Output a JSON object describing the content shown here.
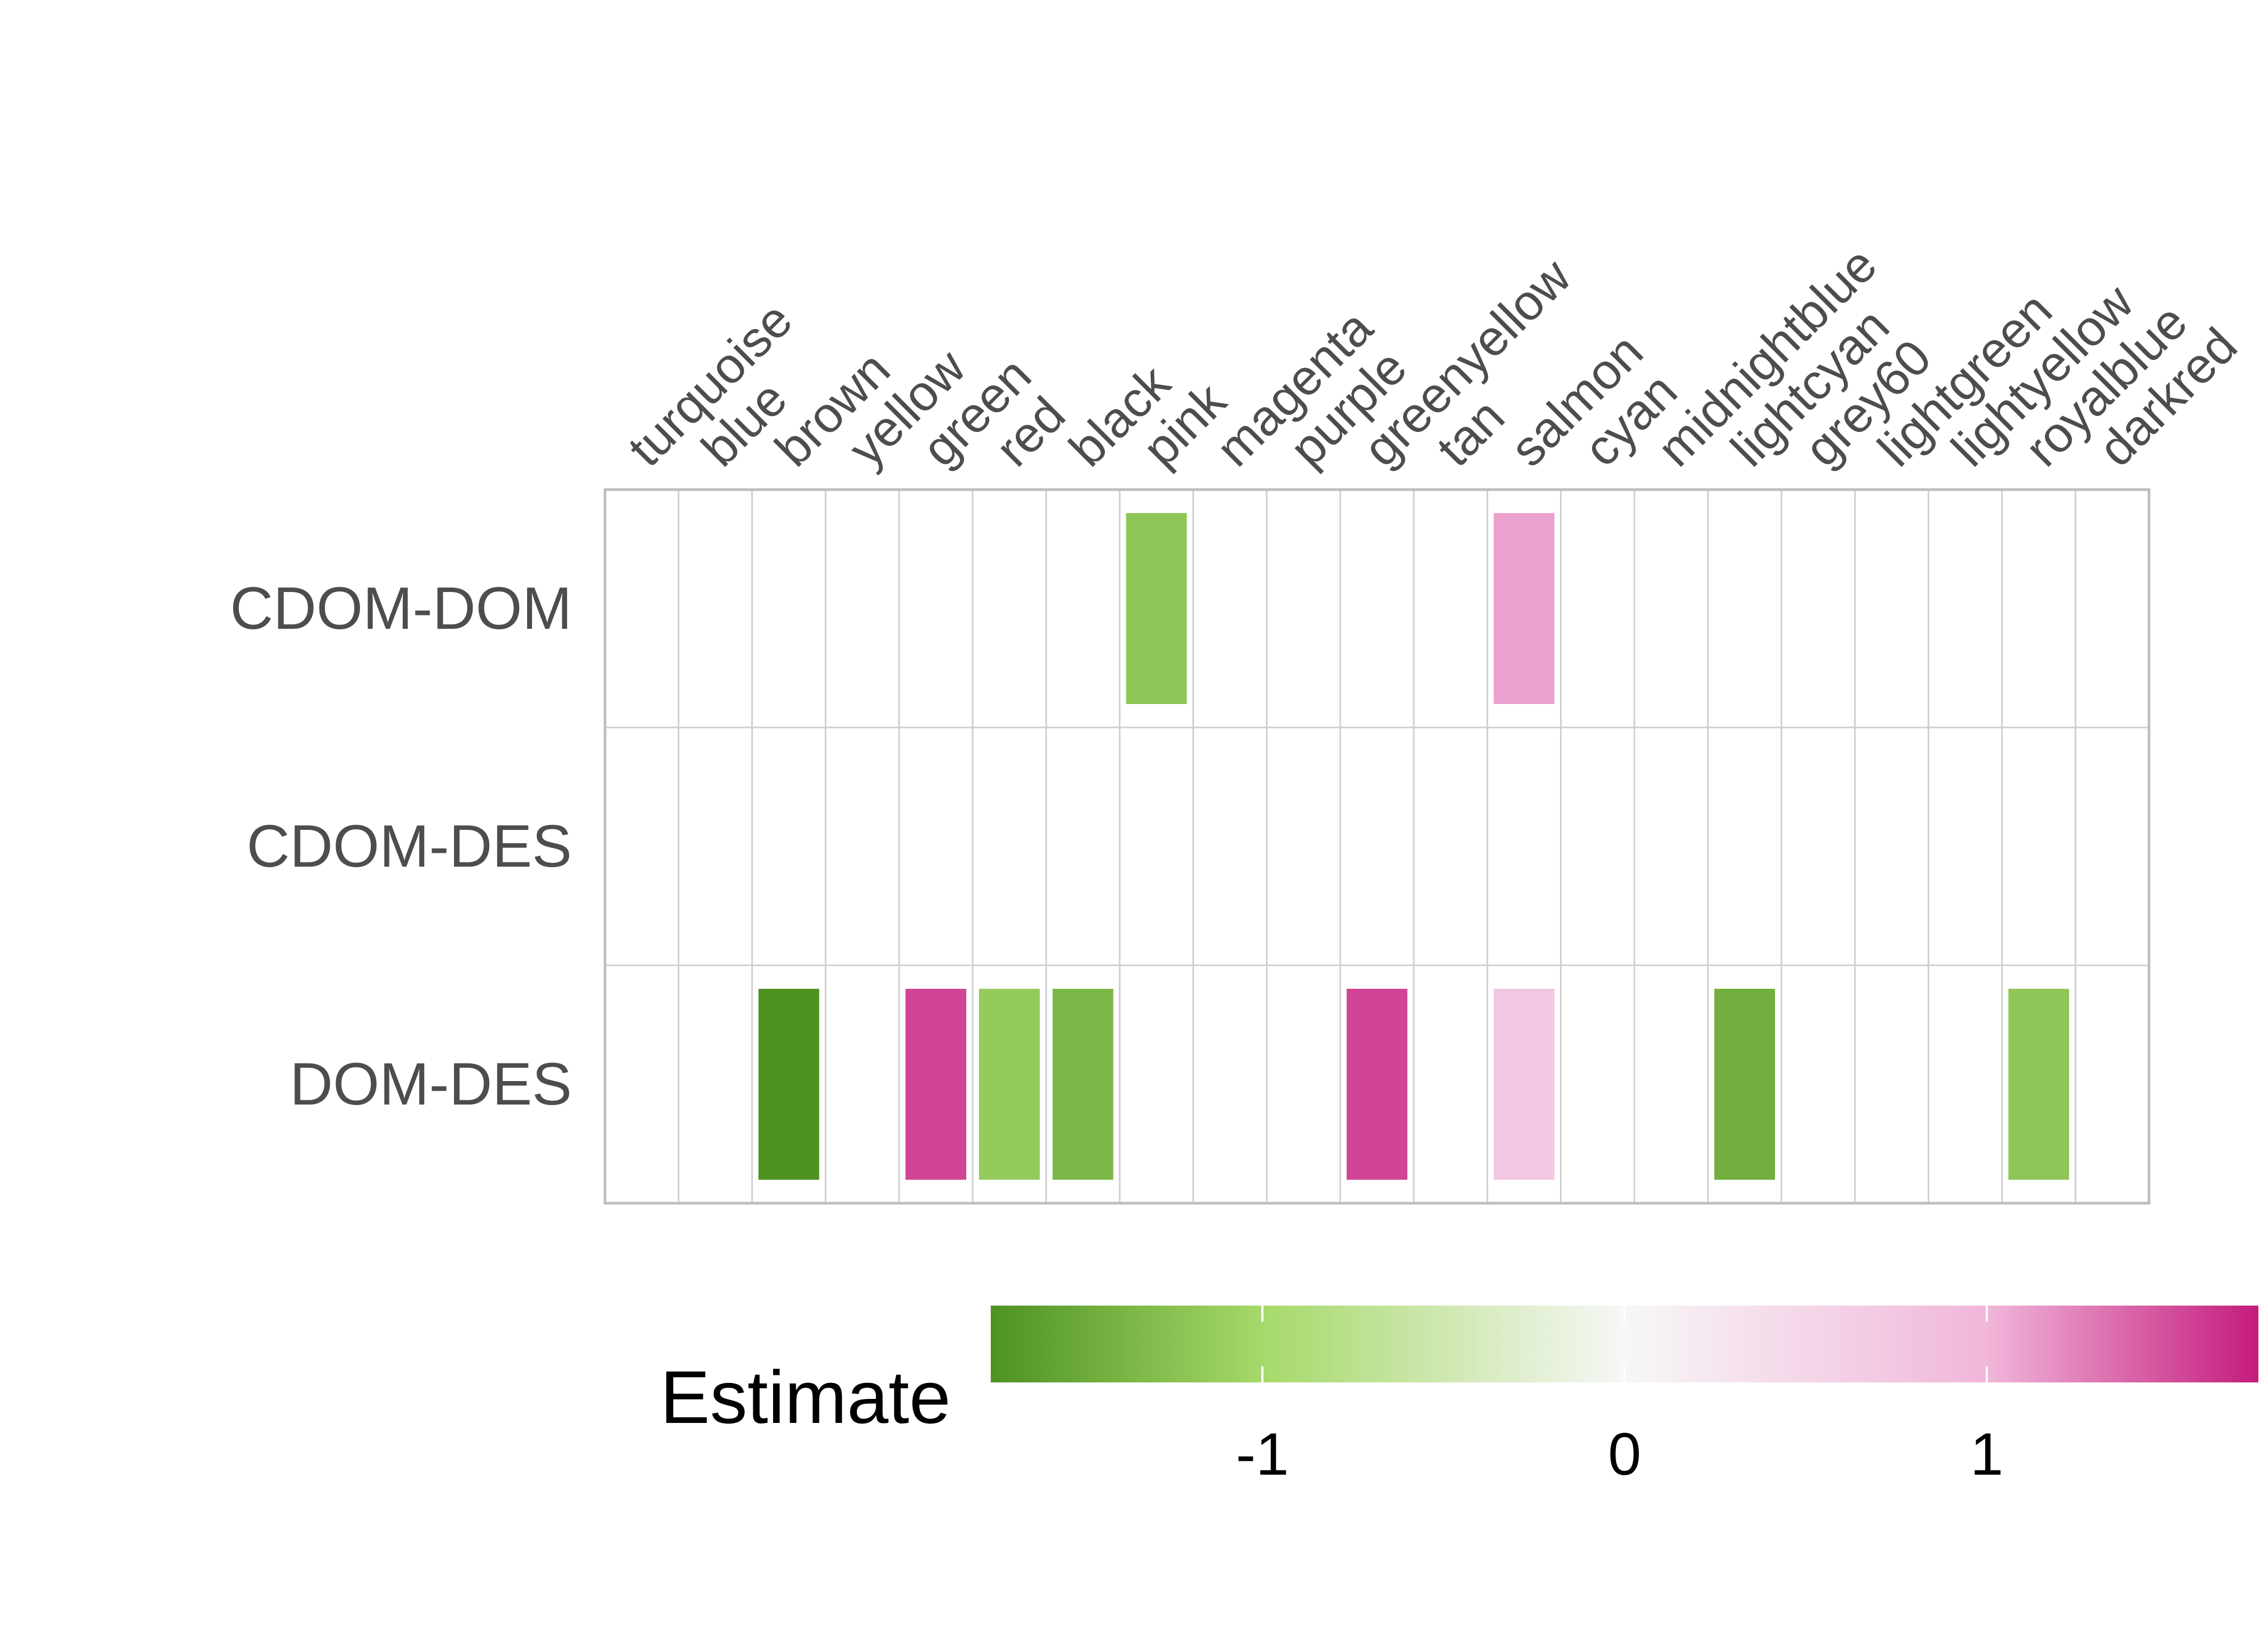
{
  "chart_data": {
    "type": "heatmap",
    "title": "",
    "xlabel": "",
    "ylabel": "",
    "x_position": "top",
    "categories": [
      "turquoise",
      "blue",
      "brown",
      "yellow",
      "green",
      "red",
      "black",
      "pink",
      "magenta",
      "purple",
      "greenyellow",
      "tan",
      "salmon",
      "cyan",
      "midnightblue",
      "lightcyan",
      "grey60",
      "lightgreen",
      "lightyellow",
      "royalblue",
      "darkred"
    ],
    "rows": [
      "CDOM-DOM",
      "CDOM-DES",
      "DOM-DES"
    ],
    "cells": [
      {
        "row": "CDOM-DOM",
        "col": "pink",
        "value": -1.2
      },
      {
        "row": "CDOM-DOM",
        "col": "salmon",
        "value": 1.1
      },
      {
        "row": "DOM-DES",
        "col": "brown",
        "value": -1.75
      },
      {
        "row": "DOM-DES",
        "col": "green",
        "value": 1.55
      },
      {
        "row": "DOM-DES",
        "col": "red",
        "value": -1.15
      },
      {
        "row": "DOM-DES",
        "col": "black",
        "value": -1.35
      },
      {
        "row": "DOM-DES",
        "col": "greenyellow",
        "value": 1.55
      },
      {
        "row": "DOM-DES",
        "col": "salmon",
        "value": 0.75
      },
      {
        "row": "DOM-DES",
        "col": "lightcyan",
        "value": -1.45
      },
      {
        "row": "DOM-DES",
        "col": "royalblue",
        "value": -1.2
      }
    ],
    "grid": true,
    "legend": {
      "title": "Estimate",
      "position": "bottom",
      "min": -1.75,
      "max": 1.75,
      "ticks": [
        -1,
        0,
        1
      ],
      "colors": {
        "low": "#4d9221",
        "mid_low": "#a6d96a",
        "mid": "#f7f7f7",
        "mid_high": "#f1b6da",
        "high": "#c51b7d"
      }
    }
  }
}
